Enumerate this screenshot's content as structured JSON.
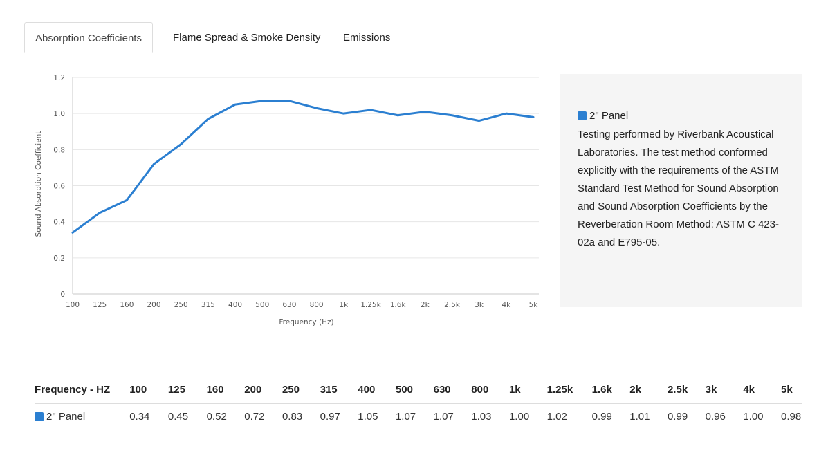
{
  "tabs": [
    {
      "label": "Absorption Coefficients",
      "active": true
    },
    {
      "label": "Flame Spread & Smoke Density",
      "active": false
    },
    {
      "label": "Emissions",
      "active": false
    }
  ],
  "colors": {
    "series": "#2b7fd1"
  },
  "chart_data": {
    "type": "line",
    "categories": [
      "100",
      "125",
      "160",
      "200",
      "250",
      "315",
      "400",
      "500",
      "630",
      "800",
      "1k",
      "1.25k",
      "1.6k",
      "2k",
      "2.5k",
      "3k",
      "4k",
      "5k"
    ],
    "series": [
      {
        "name": "2\" Panel",
        "values": [
          0.34,
          0.45,
          0.52,
          0.72,
          0.83,
          0.97,
          1.05,
          1.07,
          1.07,
          1.03,
          1.0,
          1.02,
          0.99,
          1.01,
          0.99,
          0.96,
          1.0,
          0.98
        ]
      }
    ],
    "xlabel": "Frequency (Hz)",
    "ylabel": "Sound Absorption Coefficient",
    "ylim": [
      0,
      1.2
    ],
    "yticks": [
      "0",
      "0.2",
      "0.4",
      "0.6",
      "0.8",
      "1.0",
      "1.2"
    ],
    "grid": true,
    "legend": "right"
  },
  "legend": {
    "label": "2\" Panel",
    "description": "Testing performed by Riverbank Acoustical Laboratories. The test method conformed explicitly with the requirements of the ASTM Standard Test Method for Sound Absorption and Sound Absorption Coefficients by the Reverberation Room Method: ASTM C 423-02a and E795-05."
  },
  "table": {
    "header_label": "Frequency - HZ",
    "columns": [
      "100",
      "125",
      "160",
      "200",
      "250",
      "315",
      "400",
      "500",
      "630",
      "800",
      "1k",
      "1.25k",
      "1.6k",
      "2k",
      "2.5k",
      "3k",
      "4k",
      "5k"
    ],
    "rows": [
      {
        "label": "2\" Panel",
        "values": [
          "0.34",
          "0.45",
          "0.52",
          "0.72",
          "0.83",
          "0.97",
          "1.05",
          "1.07",
          "1.07",
          "1.03",
          "1.00",
          "1.02",
          "0.99",
          "1.01",
          "0.99",
          "0.96",
          "1.00",
          "0.98"
        ]
      }
    ]
  }
}
